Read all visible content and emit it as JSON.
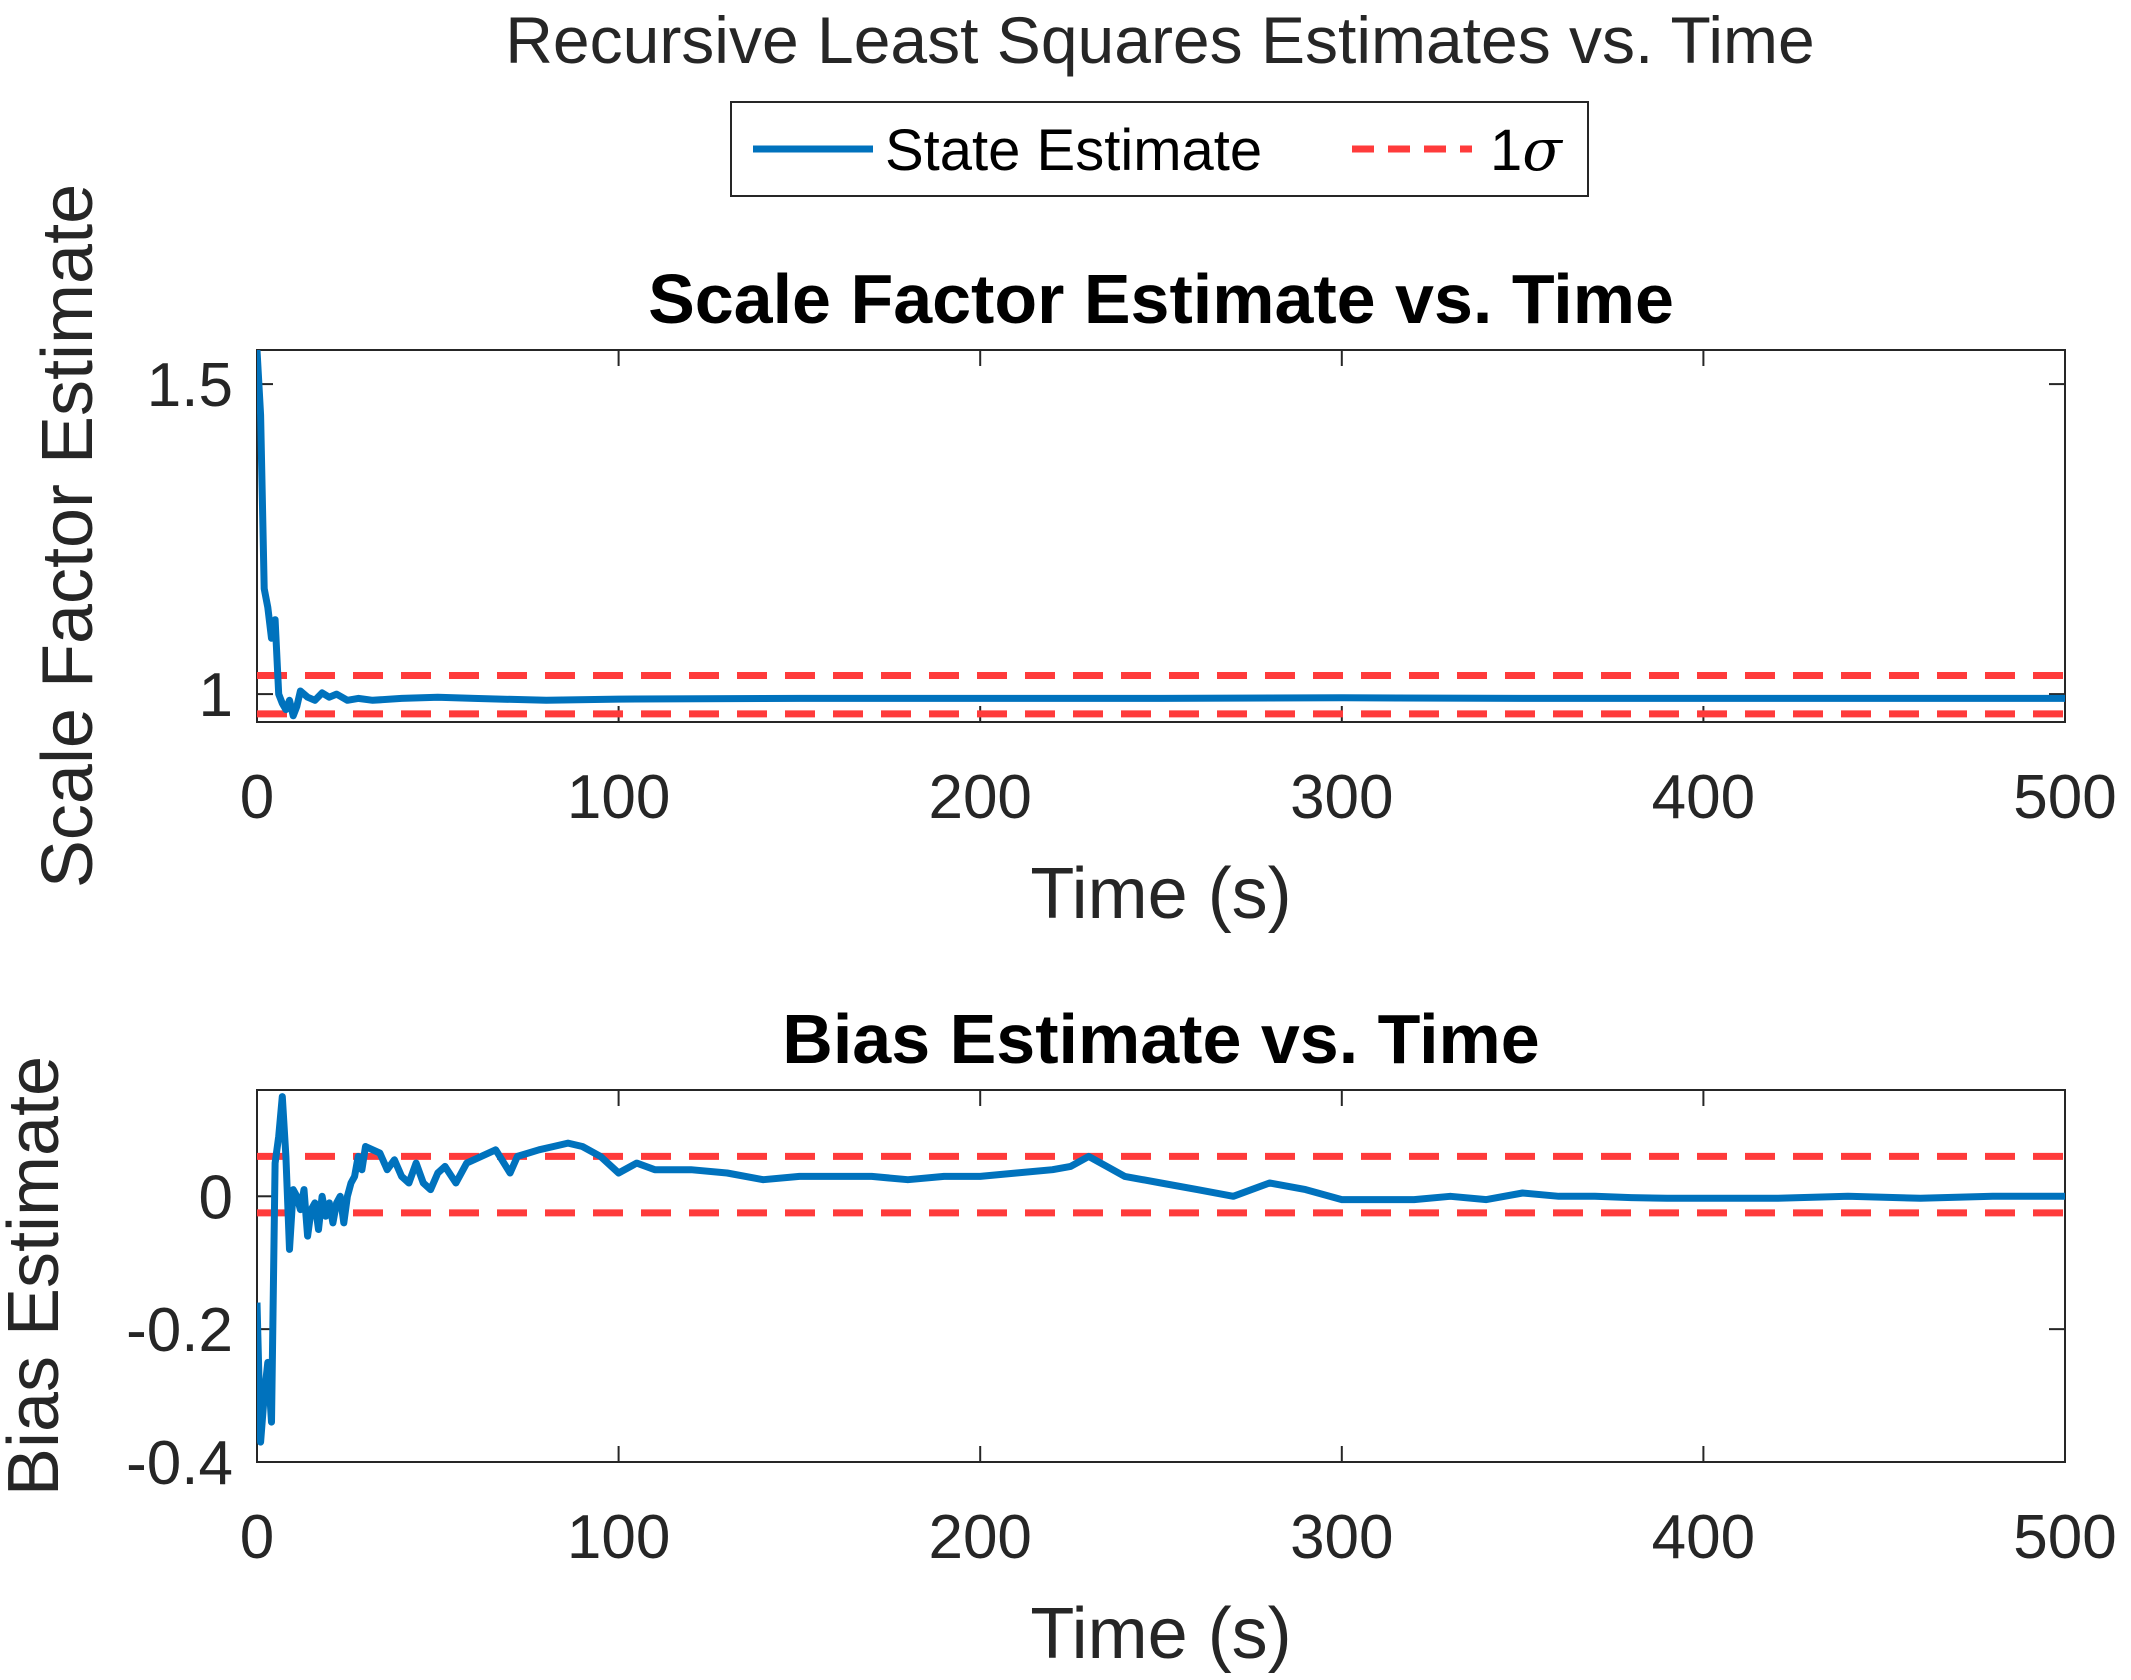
{
  "figure": {
    "suptitle": "Recursive Least Squares Estimates vs. Time"
  },
  "legend": {
    "placement": "top-center",
    "entries": [
      {
        "label": "State Estimate",
        "style": "solid",
        "color": "#0072BD"
      },
      {
        "label_number": "1",
        "label_symbol": "σ",
        "style": "dashed",
        "color": "#FF3B3B"
      }
    ]
  },
  "colors": {
    "state": "#0072BD",
    "sigma": "#FF3B3B",
    "axes": "#262626"
  },
  "chart_data": [
    {
      "type": "line",
      "title": "Scale Factor Estimate vs. Time",
      "xlabel": "Time (s)",
      "ylabel": "Scale Factor Estimate",
      "xlim": [
        0,
        500
      ],
      "ylim": [
        0.955,
        1.555
      ],
      "xticks": [
        0,
        100,
        200,
        300,
        400,
        500
      ],
      "yticks": [
        1,
        1.5
      ],
      "ytick_labels": [
        "1",
        "1.5"
      ],
      "grid": false,
      "series": [
        {
          "name": "State Estimate",
          "style": "solid",
          "x": [
            0,
            1,
            2,
            3,
            4,
            5,
            6,
            7,
            8,
            9,
            10,
            11,
            12,
            14,
            16,
            18,
            20,
            22,
            25,
            28,
            32,
            40,
            50,
            60,
            80,
            100,
            150,
            200,
            250,
            300,
            350,
            400,
            450,
            500
          ],
          "y": [
            1.555,
            1.45,
            1.17,
            1.14,
            1.09,
            1.12,
            1.0,
            0.985,
            0.975,
            0.99,
            0.965,
            0.98,
            1.005,
            0.995,
            0.99,
            1.002,
            0.995,
            1.0,
            0.99,
            0.993,
            0.99,
            0.993,
            0.995,
            0.993,
            0.99,
            0.992,
            0.993,
            0.993,
            0.993,
            0.994,
            0.993,
            0.993,
            0.993,
            0.993
          ]
        },
        {
          "name": "1σ",
          "style": "dashed",
          "x": [
            0,
            500
          ],
          "y": [
            1.03,
            1.03
          ]
        },
        {
          "style": "dashed",
          "x": [
            0,
            500
          ],
          "y": [
            0.968,
            0.968
          ]
        }
      ]
    },
    {
      "type": "line",
      "title": "Bias Estimate vs. Time",
      "xlabel": "Time (s)",
      "ylabel": "Bias Estimate",
      "xlim": [
        0,
        500
      ],
      "ylim": [
        -0.4,
        0.16
      ],
      "xticks": [
        0,
        100,
        200,
        300,
        400,
        500
      ],
      "yticks": [
        -0.4,
        -0.2,
        0
      ],
      "ytick_labels": [
        "-0.4",
        "-0.2",
        "0"
      ],
      "grid": false,
      "series": [
        {
          "name": "State Estimate",
          "style": "solid",
          "x": [
            0,
            1,
            2,
            3,
            4,
            5,
            6,
            7,
            8,
            9,
            10,
            11,
            12,
            13,
            14,
            15,
            16,
            17,
            18,
            19,
            20,
            21,
            22,
            23,
            24,
            25,
            26,
            27,
            28,
            29,
            30,
            32,
            34,
            36,
            38,
            40,
            42,
            44,
            46,
            48,
            50,
            52,
            55,
            58,
            62,
            66,
            70,
            72,
            75,
            78,
            82,
            86,
            90,
            95,
            100,
            105,
            110,
            115,
            120,
            130,
            140,
            150,
            160,
            170,
            180,
            190,
            200,
            210,
            220,
            225,
            230,
            235,
            240,
            250,
            260,
            270,
            280,
            290,
            300,
            310,
            320,
            330,
            340,
            350,
            360,
            370,
            380,
            390,
            400,
            420,
            440,
            460,
            480,
            500
          ],
          "y": [
            -0.16,
            -0.37,
            -0.3,
            -0.25,
            -0.34,
            0.05,
            0.09,
            0.15,
            0.06,
            -0.08,
            0.01,
            0.0,
            -0.02,
            0.01,
            -0.06,
            -0.02,
            -0.01,
            -0.05,
            0.0,
            -0.03,
            -0.01,
            -0.04,
            -0.01,
            0.0,
            -0.04,
            0.0,
            0.02,
            0.03,
            0.06,
            0.04,
            0.075,
            0.07,
            0.065,
            0.04,
            0.055,
            0.03,
            0.02,
            0.05,
            0.02,
            0.01,
            0.035,
            0.045,
            0.02,
            0.05,
            0.06,
            0.07,
            0.035,
            0.06,
            0.065,
            0.07,
            0.075,
            0.08,
            0.075,
            0.06,
            0.035,
            0.05,
            0.04,
            0.04,
            0.04,
            0.035,
            0.025,
            0.03,
            0.03,
            0.03,
            0.025,
            0.03,
            0.03,
            0.035,
            0.04,
            0.045,
            0.06,
            0.045,
            0.03,
            0.02,
            0.01,
            0.0,
            0.02,
            0.01,
            -0.005,
            -0.005,
            -0.005,
            0.0,
            -0.005,
            0.005,
            0.0,
            0.0,
            -0.002,
            -0.003,
            -0.003,
            -0.003,
            0.0,
            -0.003,
            0.0,
            0.0
          ]
        },
        {
          "name": "1σ",
          "style": "dashed",
          "x": [
            0,
            500
          ],
          "y": [
            0.06,
            0.06
          ]
        },
        {
          "style": "dashed",
          "x": [
            0,
            500
          ],
          "y": [
            -0.025,
            -0.025
          ]
        }
      ]
    }
  ]
}
